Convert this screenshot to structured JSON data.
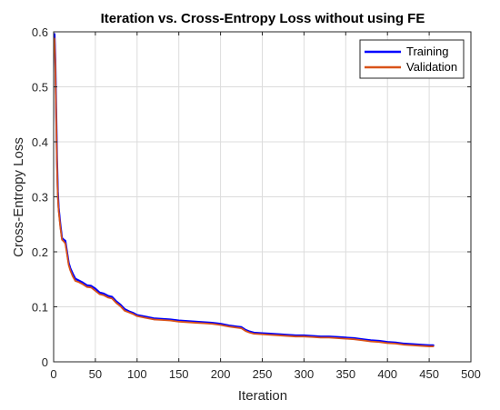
{
  "chart_data": {
    "type": "line",
    "title": "Iteration vs. Cross-Entropy Loss without using FE",
    "xlabel": "Iteration",
    "ylabel": "Cross-Entropy Loss",
    "xlim": [
      0,
      500
    ],
    "ylim": [
      0,
      0.6
    ],
    "xticks": [
      0,
      50,
      100,
      150,
      200,
      250,
      300,
      350,
      400,
      450,
      500
    ],
    "yticks": [
      0,
      0.1,
      0.2,
      0.3,
      0.4,
      0.5,
      0.6
    ],
    "xtick_labels": [
      "0",
      "50",
      "100",
      "150",
      "200",
      "250",
      "300",
      "350",
      "400",
      "450",
      "500"
    ],
    "ytick_labels": [
      "0",
      "0.1",
      "0.2",
      "0.3",
      "0.4",
      "0.5",
      "0.6"
    ],
    "grid": true,
    "legend_position": "top-right",
    "series": [
      {
        "name": "Training",
        "color": "#0000ff",
        "x": [
          1,
          2,
          3,
          4,
          5,
          6,
          8,
          10,
          12,
          14,
          16,
          18,
          20,
          23,
          26,
          30,
          35,
          40,
          45,
          50,
          55,
          60,
          65,
          70,
          75,
          80,
          85,
          90,
          95,
          100,
          110,
          120,
          130,
          140,
          150,
          160,
          170,
          180,
          190,
          200,
          210,
          220,
          225,
          230,
          235,
          240,
          250,
          260,
          270,
          280,
          290,
          300,
          310,
          320,
          330,
          340,
          350,
          360,
          370,
          380,
          390,
          400,
          410,
          420,
          430,
          440,
          450,
          455
        ],
        "y": [
          0.596,
          0.55,
          0.46,
          0.37,
          0.31,
          0.28,
          0.25,
          0.225,
          0.222,
          0.22,
          0.2,
          0.18,
          0.17,
          0.16,
          0.151,
          0.148,
          0.144,
          0.139,
          0.138,
          0.133,
          0.126,
          0.124,
          0.12,
          0.118,
          0.11,
          0.104,
          0.096,
          0.092,
          0.089,
          0.085,
          0.082,
          0.079,
          0.078,
          0.077,
          0.075,
          0.074,
          0.073,
          0.072,
          0.071,
          0.069,
          0.066,
          0.064,
          0.063,
          0.058,
          0.055,
          0.053,
          0.052,
          0.051,
          0.05,
          0.049,
          0.048,
          0.048,
          0.047,
          0.046,
          0.046,
          0.045,
          0.044,
          0.043,
          0.041,
          0.039,
          0.038,
          0.036,
          0.035,
          0.033,
          0.032,
          0.031,
          0.03,
          0.03
        ]
      },
      {
        "name": "Validation",
        "color": "#d95319",
        "x": [
          1,
          2,
          3,
          4,
          5,
          6,
          8,
          10,
          12,
          14,
          16,
          18,
          20,
          23,
          26,
          30,
          35,
          40,
          45,
          50,
          55,
          60,
          65,
          70,
          75,
          80,
          85,
          90,
          95,
          100,
          110,
          120,
          130,
          140,
          150,
          160,
          170,
          180,
          190,
          200,
          210,
          220,
          225,
          230,
          235,
          240,
          250,
          260,
          270,
          280,
          290,
          300,
          310,
          320,
          330,
          340,
          350,
          360,
          370,
          380,
          390,
          400,
          410,
          420,
          430,
          440,
          450,
          455
        ],
        "y": [
          0.588,
          0.54,
          0.45,
          0.36,
          0.3,
          0.275,
          0.245,
          0.222,
          0.219,
          0.215,
          0.196,
          0.176,
          0.166,
          0.155,
          0.147,
          0.145,
          0.141,
          0.136,
          0.135,
          0.129,
          0.123,
          0.121,
          0.117,
          0.115,
          0.107,
          0.101,
          0.093,
          0.09,
          0.087,
          0.083,
          0.08,
          0.077,
          0.076,
          0.075,
          0.073,
          0.072,
          0.071,
          0.07,
          0.069,
          0.067,
          0.064,
          0.062,
          0.061,
          0.056,
          0.053,
          0.051,
          0.05,
          0.049,
          0.048,
          0.047,
          0.046,
          0.046,
          0.045,
          0.044,
          0.044,
          0.043,
          0.042,
          0.041,
          0.039,
          0.037,
          0.036,
          0.034,
          0.033,
          0.031,
          0.03,
          0.029,
          0.028,
          0.028
        ]
      }
    ]
  }
}
